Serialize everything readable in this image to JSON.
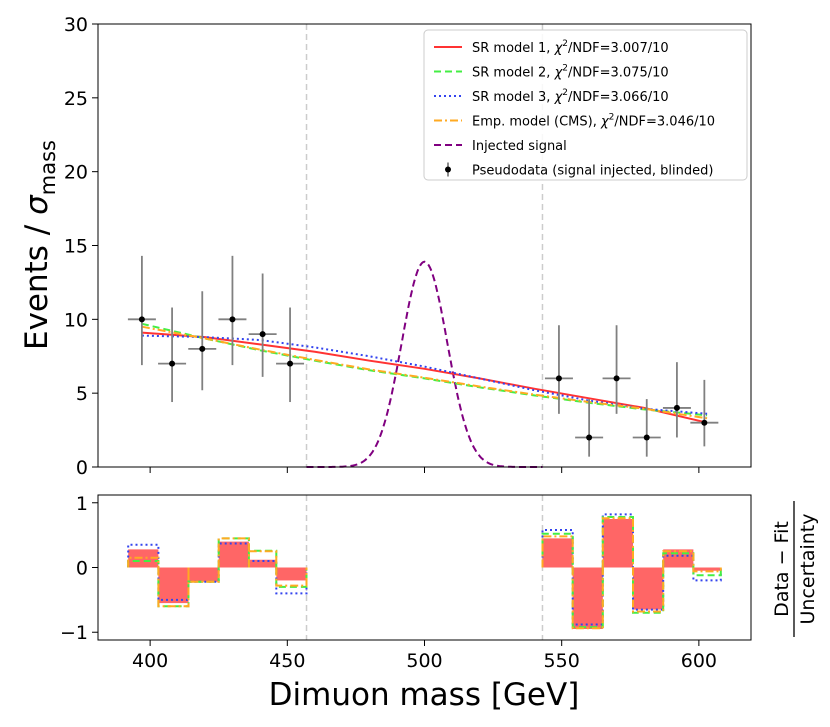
{
  "chart_data": {
    "type": "line",
    "xlabel": "Dimuon mass [GeV]",
    "xlim": [
      381,
      619
    ],
    "blind_window": [
      457,
      543
    ],
    "colors": {
      "sr1": "#ff3333",
      "sr2": "#44ee44",
      "sr3": "#3344ee",
      "emp": "#ffaa22",
      "signal": "#800080",
      "data": "#000000",
      "errorbar": "#808080",
      "residual_fill": "#ff6666",
      "blind_line": "#cccccc"
    },
    "main_panel": {
      "ylabel_main": "Events / ",
      "ylabel_sigma": "σ",
      "ylabel_sub": "mass",
      "ylim": [
        0,
        30
      ],
      "yticks": [
        0,
        5,
        10,
        15,
        20,
        25,
        30
      ],
      "xticks": [
        400,
        450,
        500,
        550,
        600
      ],
      "series": [
        {
          "key": "sr1",
          "name_prefix": "SR model 1, ",
          "chi_symbol": "χ",
          "chi_sup": "2",
          "name_suffix": "/NDF=3.007/10",
          "style": "solid",
          "x": [
            397,
            420,
            440,
            460,
            480,
            500,
            520,
            540,
            560,
            580,
            603
          ],
          "y": [
            9.1,
            8.8,
            8.3,
            7.8,
            7.2,
            6.65,
            6.0,
            5.3,
            4.65,
            4.0,
            3.0
          ]
        },
        {
          "key": "sr2",
          "name_prefix": "SR model 2, ",
          "chi_symbol": "χ",
          "chi_sup": "2",
          "name_suffix": "/NDF=3.075/10",
          "style": "dashed",
          "x": [
            397,
            420,
            440,
            460,
            480,
            500,
            520,
            540,
            560,
            580,
            603
          ],
          "y": [
            9.7,
            8.7,
            7.9,
            7.2,
            6.55,
            6.0,
            5.4,
            4.85,
            4.35,
            3.9,
            3.5
          ]
        },
        {
          "key": "sr3",
          "name_prefix": "SR model 3, ",
          "chi_symbol": "χ",
          "chi_sup": "2",
          "name_suffix": "/NDF=3.066/10",
          "style": "dotted",
          "x": [
            397,
            420,
            440,
            460,
            480,
            500,
            520,
            540,
            560,
            580,
            603
          ],
          "y": [
            8.9,
            8.8,
            8.6,
            8.1,
            7.5,
            6.8,
            6.0,
            5.2,
            4.5,
            3.95,
            3.6
          ]
        },
        {
          "key": "emp",
          "name_prefix": "Emp. model (CMS), ",
          "chi_symbol": "χ",
          "chi_sup": "2",
          "name_suffix": "/NDF=3.046/10",
          "style": "dashdot",
          "x": [
            397,
            420,
            440,
            460,
            480,
            500,
            520,
            540,
            560,
            580,
            603
          ],
          "y": [
            9.5,
            8.7,
            7.95,
            7.25,
            6.6,
            6.05,
            5.45,
            4.9,
            4.4,
            3.95,
            3.3
          ]
        }
      ],
      "signal": {
        "name": "Injected signal",
        "mean": 500,
        "sigma": 8.3,
        "amplitude": 13.9,
        "x_range": [
          457,
          543
        ]
      },
      "data": {
        "name": "Pseudodata (signal injected, blinded)",
        "points": [
          {
            "x": 397,
            "y": 10,
            "y_low": 6.9,
            "y_high": 14.3
          },
          {
            "x": 408,
            "y": 7,
            "y_low": 4.4,
            "y_high": 10.8
          },
          {
            "x": 419,
            "y": 8,
            "y_low": 5.2,
            "y_high": 11.9
          },
          {
            "x": 430,
            "y": 10,
            "y_low": 6.9,
            "y_high": 14.3
          },
          {
            "x": 441,
            "y": 9,
            "y_low": 6.1,
            "y_high": 13.1
          },
          {
            "x": 451,
            "y": 7,
            "y_low": 4.4,
            "y_high": 10.8
          },
          {
            "x": 549,
            "y": 6,
            "y_low": 3.6,
            "y_high": 9.6
          },
          {
            "x": 560,
            "y": 2,
            "y_low": 0.7,
            "y_high": 4.6
          },
          {
            "x": 570,
            "y": 6,
            "y_low": 3.6,
            "y_high": 9.6
          },
          {
            "x": 581,
            "y": 2,
            "y_low": 0.7,
            "y_high": 4.6
          },
          {
            "x": 592,
            "y": 4,
            "y_low": 2.0,
            "y_high": 7.1
          },
          {
            "x": 602,
            "y": 3,
            "y_low": 1.4,
            "y_high": 5.9
          }
        ]
      }
    },
    "residual_panel": {
      "ylabel_numerator": "Data − Fit",
      "ylabel_denominator": "Uncertainty",
      "ylim": [
        -1.12,
        1.12
      ],
      "yticks": [
        -1,
        0,
        1
      ],
      "ytick_labels": [
        "−1",
        "0",
        "1"
      ],
      "bin_edges": [
        [
          392,
          403
        ],
        [
          403,
          414
        ],
        [
          414,
          425
        ],
        [
          425,
          436
        ],
        [
          436,
          446
        ],
        [
          446,
          457
        ],
        [
          543,
          554
        ],
        [
          554,
          565
        ],
        [
          565,
          576
        ],
        [
          576,
          587
        ],
        [
          587,
          598
        ],
        [
          598,
          608
        ]
      ],
      "sr1": [
        0.28,
        -0.55,
        -0.22,
        0.4,
        0.12,
        -0.2,
        0.45,
        -0.95,
        0.75,
        -0.65,
        0.28,
        -0.05
      ],
      "sr2": [
        0.1,
        -0.6,
        -0.22,
        0.45,
        0.26,
        -0.3,
        0.52,
        -0.92,
        0.78,
        -0.7,
        0.22,
        -0.12
      ],
      "sr3": [
        0.35,
        -0.5,
        -0.22,
        0.37,
        0.1,
        -0.4,
        0.58,
        -0.88,
        0.82,
        -0.65,
        0.18,
        -0.2
      ],
      "emp": [
        0.15,
        -0.6,
        -0.22,
        0.45,
        0.25,
        -0.28,
        0.48,
        -0.94,
        0.76,
        -0.68,
        0.25,
        -0.06
      ]
    }
  }
}
